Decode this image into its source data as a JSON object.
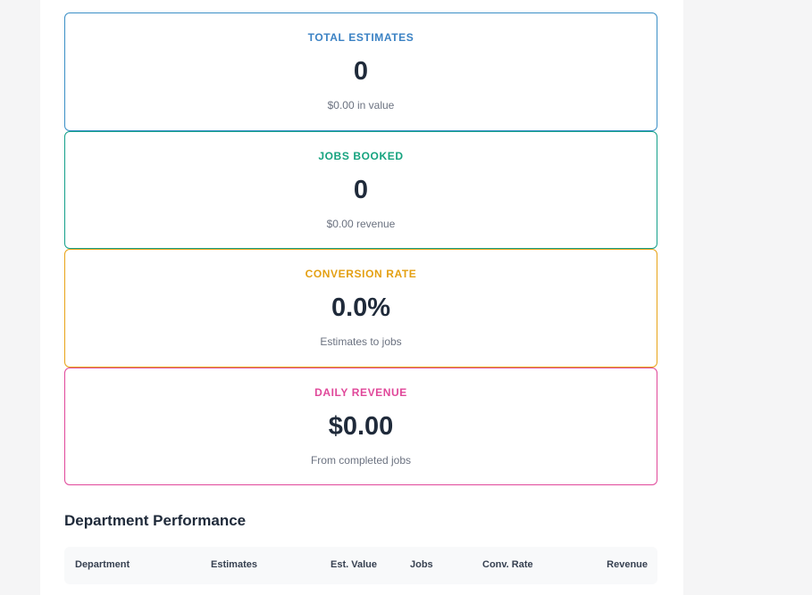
{
  "cards": [
    {
      "title": "TOTAL ESTIMATES",
      "value": "0",
      "subtitle": "$0.00 in value",
      "accent": "#3b82c4"
    },
    {
      "title": "JOBS BOOKED",
      "value": "0",
      "subtitle": "$0.00 revenue",
      "accent": "#16a37f"
    },
    {
      "title": "CONVERSION RATE",
      "value": "0.0%",
      "subtitle": "Estimates to jobs",
      "accent": "#e4a013"
    },
    {
      "title": "DAILY REVENUE",
      "value": "$0.00",
      "subtitle": "From completed jobs",
      "accent": "#e0489a"
    }
  ],
  "department_performance": {
    "title": "Department Performance",
    "columns": [
      "Department",
      "Estimates",
      "Est. Value",
      "Jobs",
      "Conv. Rate",
      "Revenue"
    ]
  }
}
